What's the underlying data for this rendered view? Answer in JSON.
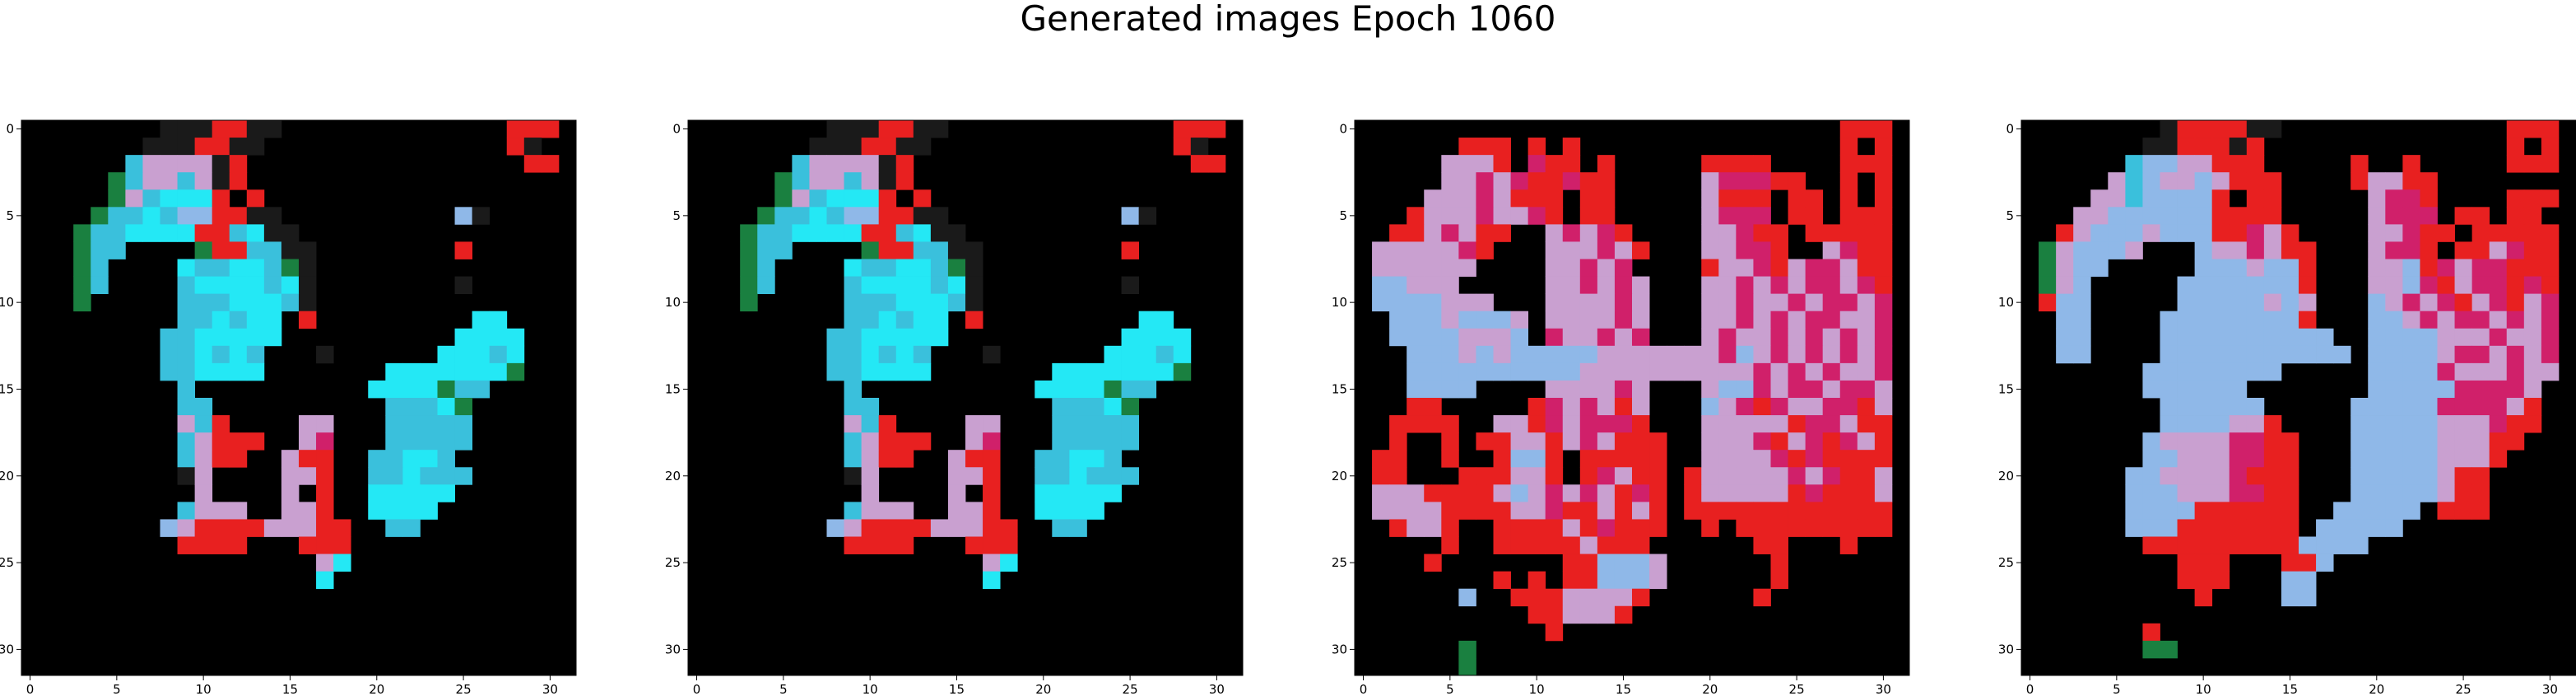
{
  "figure": {
    "title": "Generated images Epoch 1060"
  },
  "chart_data": [
    {
      "type": "heatmap",
      "title": "",
      "xlabel": "",
      "ylabel": "",
      "grid": false,
      "xlim": [
        -0.5,
        31.5
      ],
      "ylim": [
        31.5,
        -0.5
      ],
      "xticks": [
        0,
        5,
        10,
        15,
        20,
        25,
        30
      ],
      "yticks": [
        0,
        5,
        10,
        15,
        20,
        25,
        30
      ],
      "palette": [
        "#000000",
        "#24e8f5",
        "#3ac0dc",
        "#8fb8e8",
        "#c9a0d0",
        "#d0206a",
        "#e82020",
        "#1a8040",
        "#1a1a1a",
        "#0a0a0a"
      ],
      "rows": [
        "00000000888668800000000000006660",
        "00000008886688000000000000006800",
        "00000024444860000000000000000660",
        "00000724424860000000000000000000",
        "00000742111606000000000000000000",
        "00007221233668800000000003800000",
        "00072211116621880000000000000000",
        "00072200007662288000000006000000",
        "00072000012211278000000000000000",
        "00072000021111218000000008000000",
        "00070000022211128000000000000000",
        "00000000022121106000000000110000",
        "00000000221111100000000001111000",
        "00000000221212000800000011121000",
        "00000000221111000000011111117000",
        "00000000020000000000111172200000",
        "00000000022000000000022217000000",
        "00000000042600004400022222000000",
        "00000000024666004500022222000000",
        "00000000024660046600221120000000",
        "00000000084000044600221222000000",
        "00000000004000040600111110000000",
        "00000000024440044600111100000000",
        "00000000346666444660022000000000",
        "00000000066660006660000000000000",
        "00000000000000000410000000000000",
        "00000000000000000100000000000000",
        "00000000000000000000000000000000",
        "00000000000000000000000000000000",
        "00000000000000000000000000000000",
        "00000000000000000000000000000000",
        "00000000000000000000000000000000"
      ]
    },
    {
      "type": "heatmap",
      "title": "",
      "xlabel": "",
      "ylabel": "",
      "grid": false,
      "xlim": [
        -0.5,
        31.5
      ],
      "ylim": [
        31.5,
        -0.5
      ],
      "xticks": [
        0,
        5,
        10,
        15,
        20,
        25,
        30
      ],
      "yticks": [
        0,
        5,
        10,
        15,
        20,
        25,
        30
      ],
      "palette": [
        "#000000",
        "#24e8f5",
        "#3ac0dc",
        "#8fb8e8",
        "#c9a0d0",
        "#d0206a",
        "#e82020",
        "#1a8040",
        "#1a1a1a",
        "#0a0a0a"
      ],
      "rows": [
        "00000000888668800000000000006660",
        "00000008886688000000000000006800",
        "00000024444860000000000000000660",
        "00000724424860000000000000000000",
        "00000742111606000000000000000000",
        "00007221233668800000000003800000",
        "00072211116621880000000000000000",
        "00072200007662288000000006000000",
        "00072000012211278000000000000000",
        "00072000021111218000000008000000",
        "00070000022211128000000000000000",
        "00000000022121106000000000110000",
        "00000000221111100000000001111000",
        "00000000221212000800000011121000",
        "00000000221111000000011111117000",
        "00000000020000000000111172200000",
        "00000000022000000000022217000000",
        "00000000042600004400022222000000",
        "00000000024666004500022222000000",
        "00000000024660046600221120000000",
        "00000000084000044600221222000000",
        "00000000004000040600111110000000",
        "00000000024440044600111100000000",
        "00000000346666444660022000000000",
        "00000000066660006660000000000000",
        "00000000000000000410000000000000",
        "00000000000000000100000000000000",
        "00000000000000000000000000000000",
        "00000000000000000000000000000000",
        "00000000000000000000000000000000",
        "00000000000000000000000000000000",
        "00000000000000000000000000000000"
      ]
    },
    {
      "type": "heatmap",
      "title": "",
      "xlabel": "",
      "ylabel": "",
      "grid": false,
      "xlim": [
        -0.5,
        31.5
      ],
      "ylim": [
        31.5,
        -0.5
      ],
      "xticks": [
        0,
        5,
        10,
        15,
        20,
        25,
        30
      ],
      "yticks": [
        0,
        5,
        10,
        15,
        20,
        25,
        30
      ],
      "palette": [
        "#000000",
        "#24e8f5",
        "#3ac0dc",
        "#8fb8e8",
        "#c9a0d0",
        "#d0206a",
        "#e82020",
        "#1a8040",
        "#1a1a1a",
        "#0a0a0a"
      ],
      "rows": [
        "00000000000000000000000000006660",
        "00000066606060000000000000006060",
        "00000444605660600000666600006660",
        "00000445456656600000455566006060",
        "00004445466606600000466606606060",
        "00064445445606600000455506606660",
        "00664546600454560000445660666660",
        "04444456000444546000445560045660",
        "04444440000445450000644564554660",
        "03344400000445454000445454554560",
        "03333444000444454000445445455450",
        "00333433340444454000445454554450",
        "00333344430544545000454454545450",
        "00033343433333444444453454545450",
        "00033333333334444444444545454450",
        "00033330000444454000433545545540",
        "00066000006545464000345654455640",
        "00666600446545556000444446554660",
        "00600606644645466600444564565460",
        "06600600633606666600444456566660",
        "06600066644606546606444445456640",
        "04446666434545465606444446566640",
        "04444666644566464606666666666660",
        "00644600666646566600606666666660",
        "00000600666664666000000660006000",
        "00006000000066333400000060000000",
        "00000000606066333400000060000000",
        "00000030066644446000000600000000",
        "00000000006644460000000000000000",
        "00000000000600000000000000000000",
        "00000070000000000000000000000000",
        "00000070000000000000000000000000"
      ]
    },
    {
      "type": "heatmap",
      "title": "",
      "xlabel": "",
      "ylabel": "",
      "grid": false,
      "xlim": [
        -0.5,
        31.5
      ],
      "ylim": [
        31.5,
        -0.5
      ],
      "xticks": [
        0,
        5,
        10,
        15,
        20,
        25,
        30
      ],
      "yticks": [
        0,
        5,
        10,
        15,
        20,
        25,
        30
      ],
      "palette": [
        "#000000",
        "#24e8f5",
        "#3ac0dc",
        "#8fb8e8",
        "#c9a0d0",
        "#d0206a",
        "#e82020",
        "#1a8040",
        "#1a1a1a",
        "#0a0a0a"
      ],
      "rows": [
        "00000000866668800000000000006660",
        "00000008866686000000000000006060",
        "00000023344666000006006000006660",
        "00000423443466600006446600000000",
        "00004423333606600000455600006660",
        "00044333333666600000455506606600",
        "00643334333665460000445660666660",
        "07433340003445466000455606645660",
        "07433000003334336000443654556660",
        "07430000033333336000443564556560",
        "06330000033333434000345456456450",
        "00330000333333336000334545545450",
        "00330000333333333300333344454450",
        "00330000333333333330333345545450",
        "00000003333333300000333354445440",
        "00000003333330000000333335555400",
        "00000000333333000003333355554600",
        "00000000333344600003333344456600",
        "00000003444455660003333344466000",
        "00000003344455660003333344460000",
        "00000033444456660003333346600000",
        "00000033344455660003333346600000",
        "00000033336666660033333066600000",
        "00000033366666660333330000000000",
        "00000006666666663333000000000000",
        "00000000066600066300000000000000",
        "00000000066600033000000000000000",
        "00000000006000033000000000000000",
        "00000000000000000000000000000000",
        "00000006000000000000000000000000",
        "00000007700000000000000000000000",
        "00000000000000000000000000000000"
      ]
    }
  ]
}
